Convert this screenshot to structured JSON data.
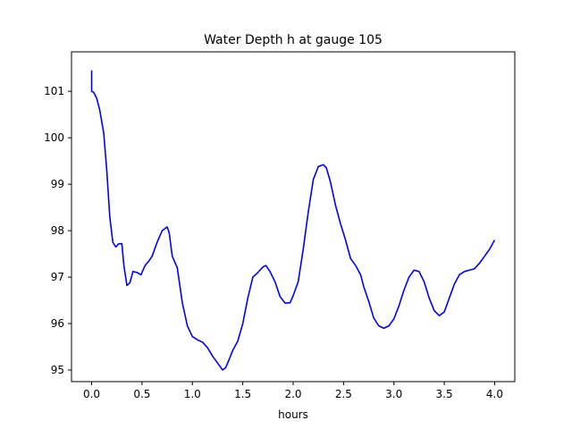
{
  "chart_data": {
    "type": "line",
    "title": "Water Depth h at gauge 105",
    "xlabel": "hours",
    "ylabel": "",
    "xlim": [
      -0.2,
      4.2
    ],
    "ylim": [
      94.75,
      101.85
    ],
    "xticks": [
      0.0,
      0.5,
      1.0,
      1.5,
      2.0,
      2.5,
      3.0,
      3.5,
      4.0
    ],
    "xtick_labels": [
      "0.0",
      "0.5",
      "1.0",
      "1.5",
      "2.0",
      "2.5",
      "3.0",
      "3.5",
      "4.0"
    ],
    "yticks": [
      95,
      96,
      97,
      98,
      99,
      100,
      101
    ],
    "ytick_labels": [
      "95",
      "96",
      "97",
      "98",
      "99",
      "100",
      "101"
    ],
    "grid": false,
    "legend": "none",
    "series": [
      {
        "color": "#0000ff",
        "x": [
          0.0,
          0.0,
          0.02,
          0.05,
          0.08,
          0.12,
          0.15,
          0.18,
          0.21,
          0.24,
          0.27,
          0.3,
          0.32,
          0.35,
          0.38,
          0.41,
          0.45,
          0.49,
          0.53,
          0.57,
          0.6,
          0.65,
          0.7,
          0.75,
          0.77,
          0.8,
          0.85,
          0.9,
          0.95,
          1.0,
          1.05,
          1.1,
          1.15,
          1.2,
          1.25,
          1.3,
          1.33,
          1.36,
          1.4,
          1.45,
          1.5,
          1.55,
          1.6,
          1.65,
          1.7,
          1.73,
          1.77,
          1.82,
          1.87,
          1.92,
          1.97,
          2.0,
          2.05,
          2.1,
          2.15,
          2.2,
          2.25,
          2.3,
          2.33,
          2.37,
          2.42,
          2.47,
          2.52,
          2.57,
          2.62,
          2.67,
          2.7,
          2.75,
          2.8,
          2.85,
          2.9,
          2.95,
          3.0,
          3.05,
          3.1,
          3.15,
          3.2,
          3.25,
          3.3,
          3.35,
          3.4,
          3.45,
          3.5,
          3.55,
          3.6,
          3.65,
          3.7,
          3.75,
          3.8,
          3.85,
          3.9,
          3.95,
          4.0
        ],
        "y": [
          101.45,
          101.0,
          100.98,
          100.85,
          100.6,
          100.1,
          99.3,
          98.3,
          97.75,
          97.65,
          97.72,
          97.72,
          97.25,
          96.82,
          96.88,
          97.12,
          97.1,
          97.05,
          97.25,
          97.35,
          97.45,
          97.75,
          98.0,
          98.08,
          97.95,
          97.45,
          97.2,
          96.45,
          95.95,
          95.72,
          95.65,
          95.6,
          95.48,
          95.3,
          95.15,
          95.0,
          95.05,
          95.2,
          95.42,
          95.62,
          96.0,
          96.55,
          97.0,
          97.1,
          97.22,
          97.25,
          97.12,
          96.9,
          96.58,
          96.44,
          96.45,
          96.6,
          96.9,
          97.6,
          98.4,
          99.1,
          99.38,
          99.42,
          99.35,
          99.05,
          98.55,
          98.15,
          97.8,
          97.4,
          97.25,
          97.05,
          96.8,
          96.48,
          96.12,
          95.95,
          95.9,
          95.95,
          96.1,
          96.38,
          96.72,
          97.0,
          97.15,
          97.12,
          96.9,
          96.55,
          96.28,
          96.17,
          96.25,
          96.55,
          96.85,
          97.05,
          97.12,
          97.15,
          97.18,
          97.3,
          97.45,
          97.6,
          97.8
        ]
      }
    ]
  }
}
